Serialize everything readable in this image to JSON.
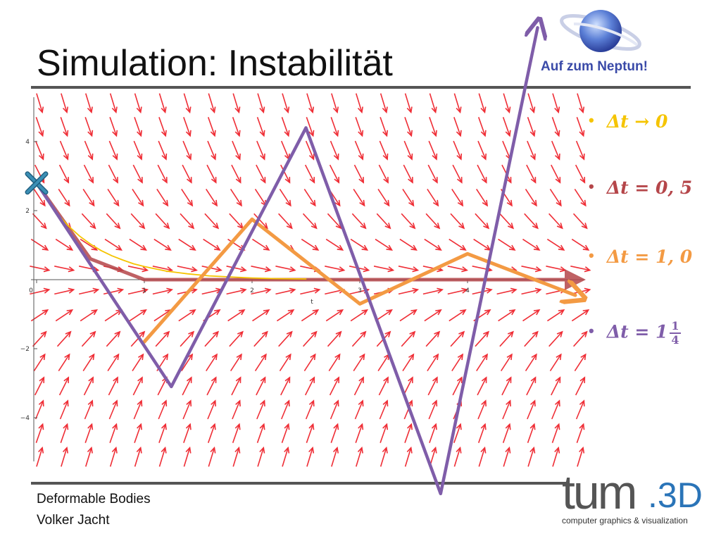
{
  "slide": {
    "title": "Simulation: Instabilität",
    "badge": "Auf zum Neptun!",
    "footer_line1": "Deformable Bodies",
    "footer_line2": "Volker Jacht"
  },
  "bullets": [
    {
      "label": "Δt → 0",
      "color": "#f5c400"
    },
    {
      "label": "Δt = 0, 5",
      "color": "#b5464a"
    },
    {
      "label": "Δt = 1, 0",
      "color": "#f39a43"
    },
    {
      "label": "Δt = 1",
      "frac_num": "1",
      "frac_den": "4",
      "color": "#7f5da9"
    }
  ],
  "logo": {
    "main": "tum",
    "suffix": ".3D",
    "sub": "computer graphics & visualization"
  },
  "colors": {
    "field": "#ef2e36",
    "axis": "#555555",
    "start_marker": "#3b8fb5",
    "badge": "#3a4aa8"
  },
  "chart_data": {
    "type": "line",
    "xlabel": "t",
    "ylabel": "",
    "xlim": [
      0,
      5.1
    ],
    "ylim": [
      -5.1,
      5.0
    ],
    "x_ticks": [
      "0",
      "1",
      "2",
      "3",
      "4"
    ],
    "y_ticks": [
      "4",
      "2",
      "−2",
      "−4"
    ],
    "direction_field": "dy/dt = -2y",
    "start_point": {
      "t": 0,
      "y": 2.8
    },
    "series": [
      {
        "name": "Δt → 0",
        "color": "#f5c400",
        "points": [
          [
            0,
            2.8
          ],
          [
            0.1,
            2.29
          ],
          [
            0.2,
            1.88
          ],
          [
            0.3,
            1.54
          ],
          [
            0.4,
            1.26
          ],
          [
            0.5,
            1.03
          ],
          [
            0.6,
            0.84
          ],
          [
            0.7,
            0.69
          ],
          [
            0.8,
            0.57
          ],
          [
            0.9,
            0.46
          ],
          [
            1.0,
            0.38
          ],
          [
            1.2,
            0.25
          ],
          [
            1.4,
            0.17
          ],
          [
            1.6,
            0.11
          ],
          [
            1.8,
            0.08
          ],
          [
            2.0,
            0.05
          ],
          [
            2.2,
            0.03
          ],
          [
            2.5,
            0.02
          ]
        ]
      },
      {
        "name": "Δt = 0, 5",
        "color": "#b5464a",
        "points": [
          [
            0,
            2.8
          ],
          [
            0.5,
            0.6
          ],
          [
            1.0,
            0.0
          ],
          [
            5.0,
            0.0
          ]
        ]
      },
      {
        "name": "Δt = 1, 0",
        "color": "#f39a43",
        "points": [
          [
            1.0,
            -1.8
          ],
          [
            2.0,
            1.75
          ],
          [
            3.0,
            -0.7
          ],
          [
            4.0,
            0.75
          ],
          [
            5.0,
            -0.45
          ]
        ]
      },
      {
        "name": "Δt = 1 1/4",
        "color": "#7f5da9",
        "points": [
          [
            0,
            2.8
          ],
          [
            1.25,
            -3.1
          ],
          [
            2.5,
            4.4
          ],
          [
            3.75,
            -6.2
          ],
          [
            4.65,
            7.3
          ]
        ]
      }
    ]
  }
}
